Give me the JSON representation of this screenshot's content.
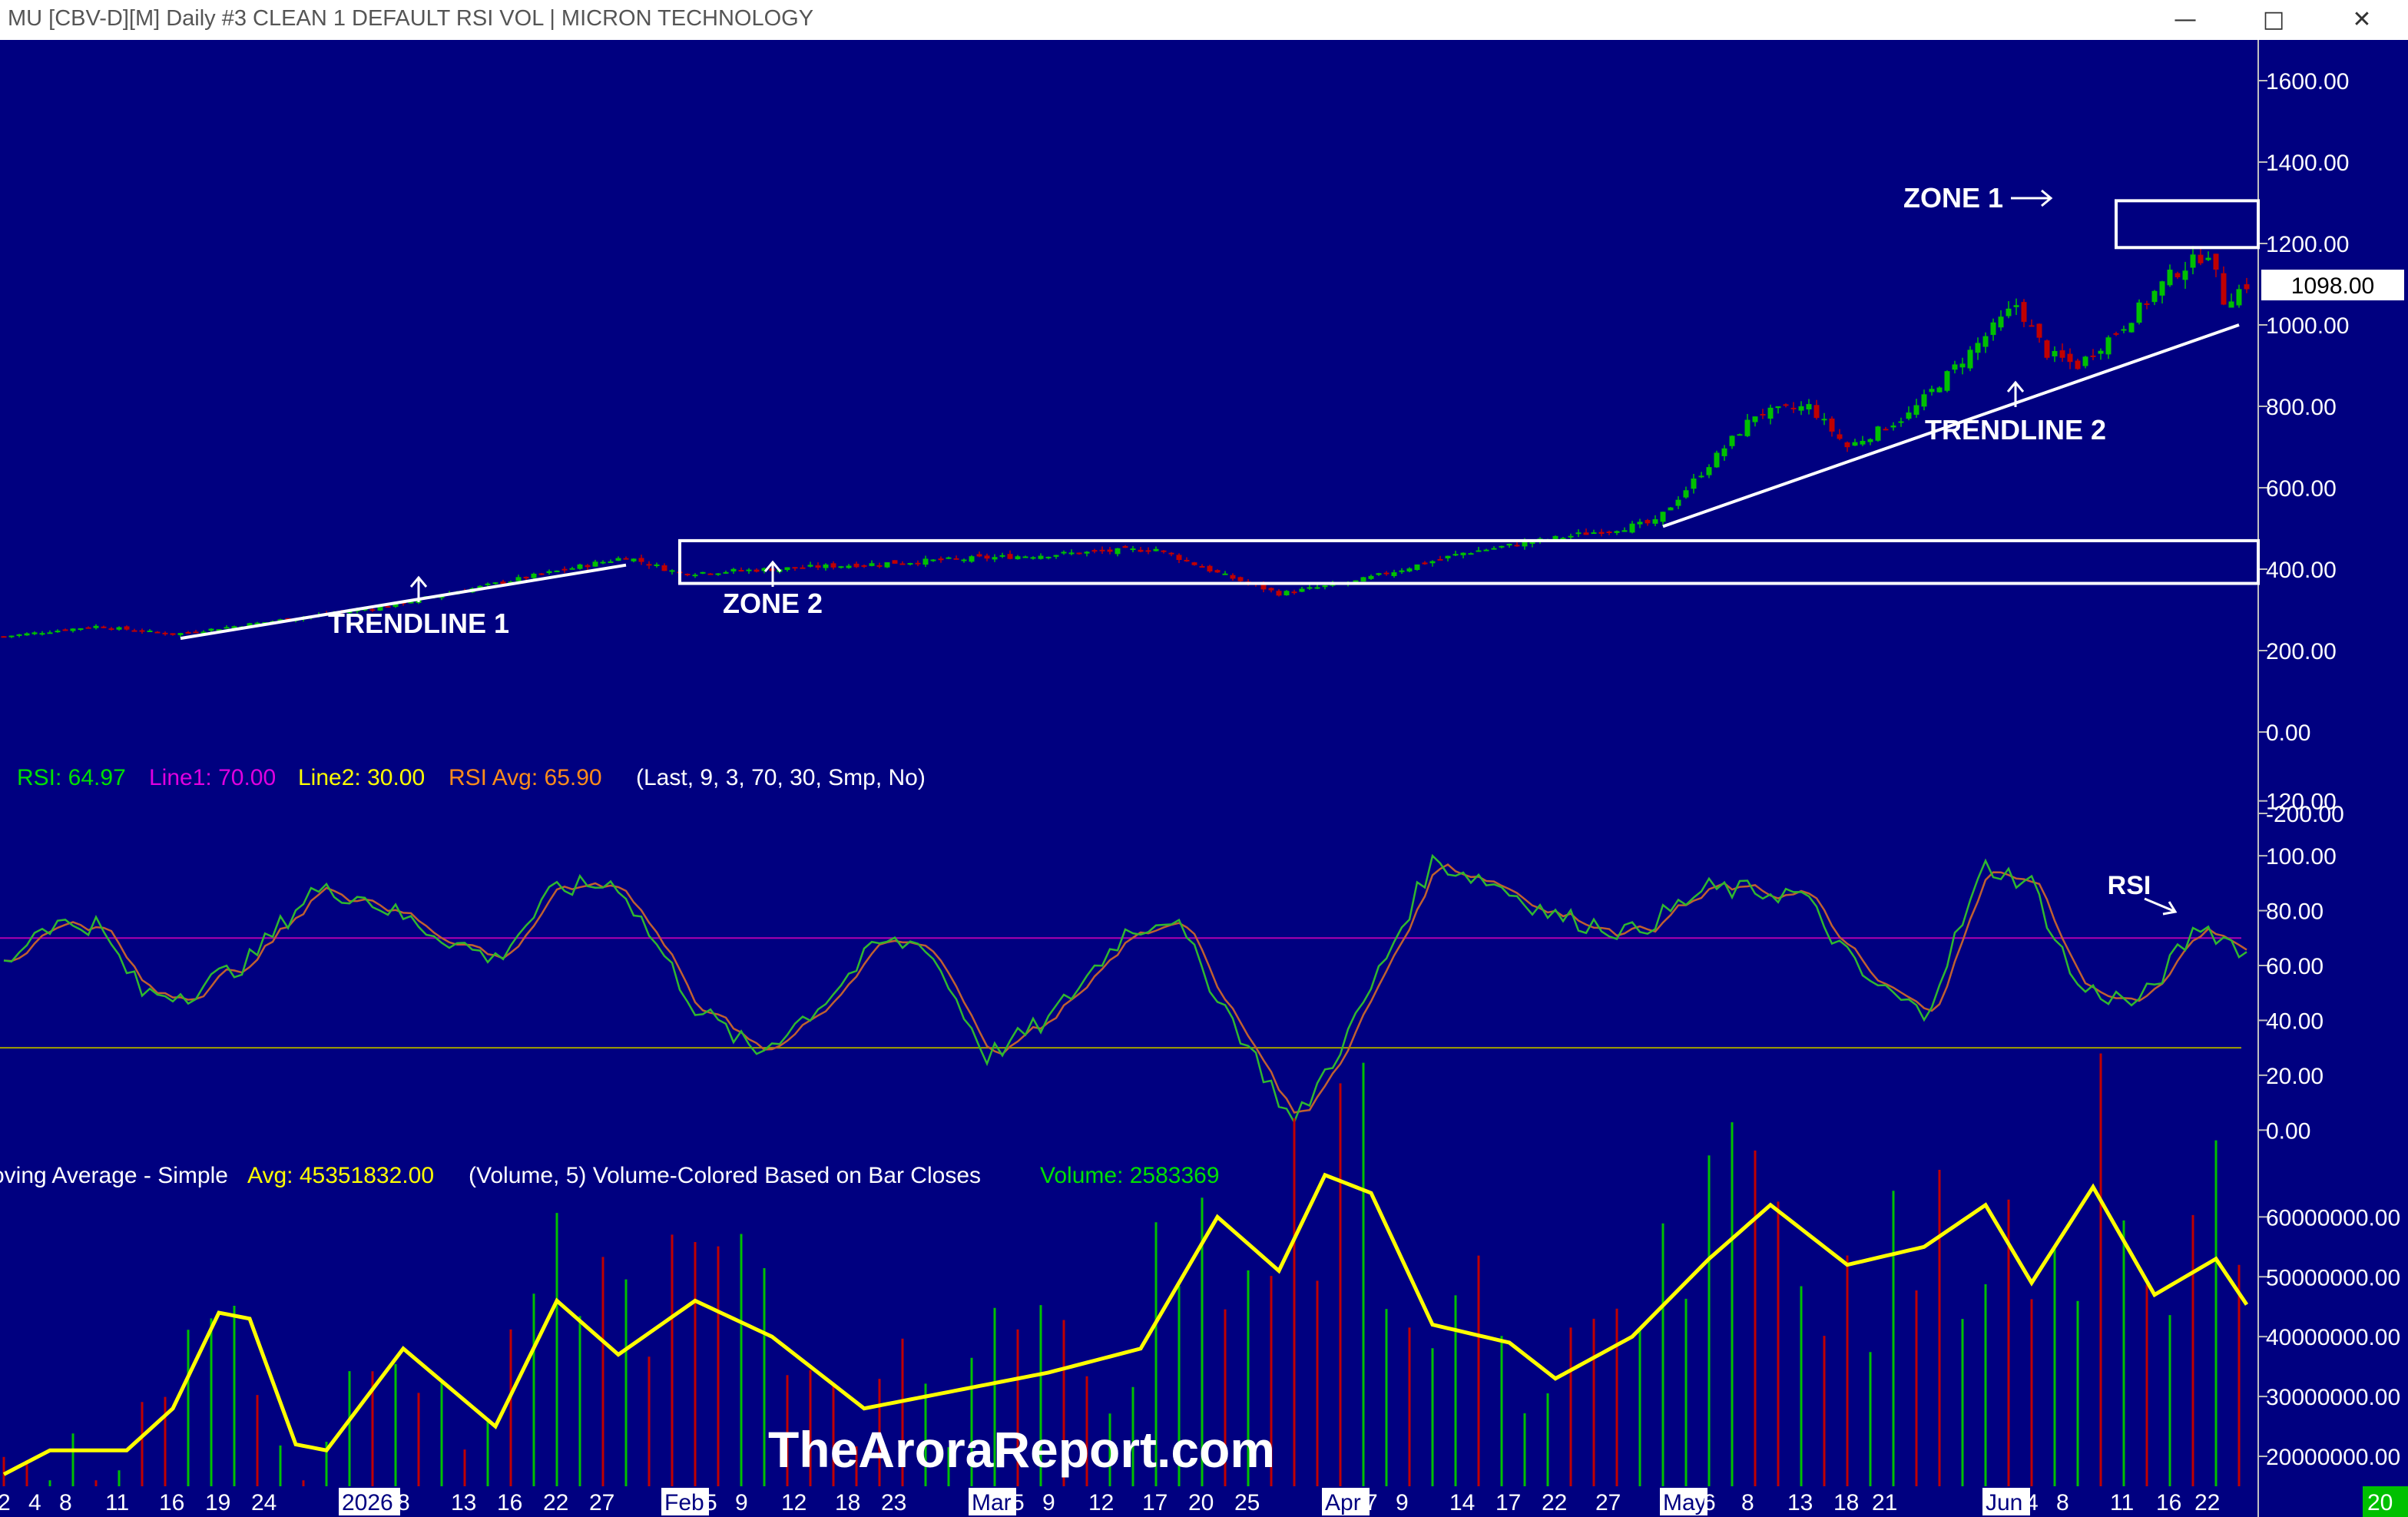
{
  "window": {
    "title": "MU [CBV-D][M]  Daily #3 CLEAN  1 DEFAULT RSI VOL | MICRON TECHNOLOGY",
    "minimize_icon": "minimize-icon",
    "maximize_icon": "maximize-icon",
    "close_icon": "close-icon"
  },
  "colors": {
    "background": "#000080",
    "up": "#00c000",
    "down": "#c00000",
    "rsi": "#2fb82f",
    "rsi_avg": "#c06030",
    "line1": "#b000b0",
    "line2": "#a0a000",
    "volume_ma": "#ffff00",
    "annotation": "#ffffff"
  },
  "chart_data": [
    {
      "type": "candlestick",
      "name": "MU price",
      "ylim": [
        -300,
        1700
      ],
      "y_ticks": [
        "1600.00",
        "1400.00",
        "1200.00",
        "1000.00",
        "800.00",
        "600.00",
        "400.00",
        "200.00",
        "0.00",
        "-200.00"
      ],
      "last_price_label": "1098.00",
      "annotations": {
        "trendline1": "TRENDLINE 1",
        "zone2": "ZONE 2",
        "zone1": "ZONE 1",
        "trendline2": "TRENDLINE 2"
      },
      "trendline1": {
        "from": {
          "bar": 23,
          "price": 230
        },
        "to": {
          "bar": 81,
          "price": 410
        }
      },
      "trendline2": {
        "from": {
          "bar": 216,
          "price": 505
        },
        "to": {
          "bar": 291,
          "price": 1000
        }
      },
      "zone1": {
        "from_bar": 275,
        "price_low": 1190,
        "price_high": 1305
      },
      "zone2": {
        "from_bar": 88,
        "price_low": 365,
        "price_high": 470
      },
      "anchors": [
        {
          "bar": 0,
          "close": 235
        },
        {
          "bar": 12,
          "close": 260
        },
        {
          "bar": 22,
          "close": 240
        },
        {
          "bar": 50,
          "close": 310
        },
        {
          "bar": 81,
          "close": 430
        },
        {
          "bar": 88,
          "close": 390
        },
        {
          "bar": 100,
          "close": 400
        },
        {
          "bar": 120,
          "close": 420
        },
        {
          "bar": 150,
          "close": 450
        },
        {
          "bar": 158,
          "close": 390
        },
        {
          "bar": 166,
          "close": 340
        },
        {
          "bar": 176,
          "close": 370
        },
        {
          "bar": 190,
          "close": 440
        },
        {
          "bar": 200,
          "close": 470
        },
        {
          "bar": 215,
          "close": 515
        },
        {
          "bar": 228,
          "close": 780
        },
        {
          "bar": 235,
          "close": 800
        },
        {
          "bar": 240,
          "close": 700
        },
        {
          "bar": 248,
          "close": 780
        },
        {
          "bar": 262,
          "close": 1050
        },
        {
          "bar": 266,
          "close": 930
        },
        {
          "bar": 270,
          "close": 900
        },
        {
          "bar": 276,
          "close": 1000
        },
        {
          "bar": 282,
          "close": 1120
        },
        {
          "bar": 287,
          "close": 1180
        },
        {
          "bar": 289,
          "close": 1060
        },
        {
          "bar": 292,
          "close": 1098
        }
      ]
    },
    {
      "type": "line",
      "name": "RSI",
      "legend": {
        "rsi": "RSI: 64.97",
        "line1": "Line1: 70.00",
        "line2": "Line2: 30.00",
        "rsi_avg": "RSI Avg: 65.90",
        "params": "(Last, 9, 3, 70, 30, Smp, No)"
      },
      "annotation": "RSI",
      "ylim": [
        -10,
        130
      ],
      "y_ticks": [
        "120.00",
        "100.00",
        "80.00",
        "60.00",
        "40.00",
        "20.00",
        "0.00"
      ],
      "line1": 70,
      "line2": 30,
      "rsi_anchors": [
        {
          "bar": 0,
          "v": 60
        },
        {
          "bar": 5,
          "v": 75
        },
        {
          "bar": 12,
          "v": 75
        },
        {
          "bar": 18,
          "v": 50
        },
        {
          "bar": 24,
          "v": 50
        },
        {
          "bar": 32,
          "v": 62
        },
        {
          "bar": 40,
          "v": 87
        },
        {
          "bar": 46,
          "v": 86
        },
        {
          "bar": 56,
          "v": 72
        },
        {
          "bar": 64,
          "v": 62
        },
        {
          "bar": 72,
          "v": 88
        },
        {
          "bar": 80,
          "v": 90
        },
        {
          "bar": 90,
          "v": 45
        },
        {
          "bar": 98,
          "v": 28
        },
        {
          "bar": 106,
          "v": 45
        },
        {
          "bar": 114,
          "v": 68
        },
        {
          "bar": 120,
          "v": 68
        },
        {
          "bar": 128,
          "v": 27
        },
        {
          "bar": 136,
          "v": 40
        },
        {
          "bar": 146,
          "v": 72
        },
        {
          "bar": 152,
          "v": 78
        },
        {
          "bar": 160,
          "v": 40
        },
        {
          "bar": 168,
          "v": 2
        },
        {
          "bar": 176,
          "v": 40
        },
        {
          "bar": 186,
          "v": 98
        },
        {
          "bar": 194,
          "v": 90
        },
        {
          "bar": 202,
          "v": 78
        },
        {
          "bar": 212,
          "v": 72
        },
        {
          "bar": 222,
          "v": 88
        },
        {
          "bar": 234,
          "v": 86
        },
        {
          "bar": 242,
          "v": 56
        },
        {
          "bar": 250,
          "v": 42
        },
        {
          "bar": 258,
          "v": 96
        },
        {
          "bar": 264,
          "v": 90
        },
        {
          "bar": 270,
          "v": 52
        },
        {
          "bar": 278,
          "v": 46
        },
        {
          "bar": 286,
          "v": 75
        },
        {
          "bar": 292,
          "v": 64.97
        }
      ]
    },
    {
      "type": "bar",
      "name": "Volume",
      "legend": {
        "ma_name": "Moving Average - Simple",
        "avg": "Avg: 45351832.00",
        "params": "(Volume, 5)  Volume-Colored Based on Bar Closes",
        "volume": "Volume: 2583369"
      },
      "watermark": "TheAroraReport.com",
      "ylim": [
        15000000,
        68000000
      ],
      "y_ticks": [
        "60000000.00",
        "50000000.00",
        "40000000.00",
        "30000000.00",
        "20000000.00"
      ],
      "ma_anchors": [
        {
          "bar": 0,
          "v": 17000000
        },
        {
          "bar": 6,
          "v": 21000000
        },
        {
          "bar": 16,
          "v": 21000000
        },
        {
          "bar": 22,
          "v": 28000000
        },
        {
          "bar": 28,
          "v": 44000000
        },
        {
          "bar": 32,
          "v": 43000000
        },
        {
          "bar": 38,
          "v": 22000000
        },
        {
          "bar": 42,
          "v": 21000000
        },
        {
          "bar": 52,
          "v": 38000000
        },
        {
          "bar": 64,
          "v": 25000000
        },
        {
          "bar": 72,
          "v": 46000000
        },
        {
          "bar": 80,
          "v": 37000000
        },
        {
          "bar": 90,
          "v": 46000000
        },
        {
          "bar": 100,
          "v": 40000000
        },
        {
          "bar": 112,
          "v": 28000000
        },
        {
          "bar": 124,
          "v": 31000000
        },
        {
          "bar": 136,
          "v": 34000000
        },
        {
          "bar": 148,
          "v": 38000000
        },
        {
          "bar": 158,
          "v": 60000000
        },
        {
          "bar": 166,
          "v": 51000000
        },
        {
          "bar": 172,
          "v": 67000000
        },
        {
          "bar": 178,
          "v": 64000000
        },
        {
          "bar": 186,
          "v": 42000000
        },
        {
          "bar": 196,
          "v": 39000000
        },
        {
          "bar": 202,
          "v": 33000000
        },
        {
          "bar": 212,
          "v": 40000000
        },
        {
          "bar": 222,
          "v": 53000000
        },
        {
          "bar": 230,
          "v": 62000000
        },
        {
          "bar": 240,
          "v": 52000000
        },
        {
          "bar": 250,
          "v": 55000000
        },
        {
          "bar": 258,
          "v": 62000000
        },
        {
          "bar": 264,
          "v": 49000000
        },
        {
          "bar": 272,
          "v": 65000000
        },
        {
          "bar": 280,
          "v": 47000000
        },
        {
          "bar": 288,
          "v": 53000000
        },
        {
          "bar": 292,
          "v": 45351832
        }
      ]
    }
  ],
  "x_axis": {
    "labels": [
      {
        "bar": 0,
        "text": "2"
      },
      {
        "bar": 4,
        "text": "4"
      },
      {
        "bar": 8,
        "text": "8"
      },
      {
        "bar": 14,
        "text": "11"
      },
      {
        "bar": 21,
        "text": "16"
      },
      {
        "bar": 27,
        "text": "19"
      },
      {
        "bar": 33,
        "text": "24"
      },
      {
        "bar": 44,
        "text": "2026",
        "highlight": true
      },
      {
        "bar": 52,
        "text": "8"
      },
      {
        "bar": 59,
        "text": "13"
      },
      {
        "bar": 65,
        "text": "16"
      },
      {
        "bar": 71,
        "text": "22"
      },
      {
        "bar": 77,
        "text": "27"
      },
      {
        "bar": 86,
        "text": "Feb",
        "highlight": true
      },
      {
        "bar": 92,
        "text": "5"
      },
      {
        "bar": 96,
        "text": "9"
      },
      {
        "bar": 102,
        "text": "12"
      },
      {
        "bar": 109,
        "text": "18"
      },
      {
        "bar": 115,
        "text": "23"
      },
      {
        "bar": 126,
        "text": "Mar",
        "highlight": true
      },
      {
        "bar": 132,
        "text": "5"
      },
      {
        "bar": 136,
        "text": "9"
      },
      {
        "bar": 142,
        "text": "12"
      },
      {
        "bar": 149,
        "text": "17"
      },
      {
        "bar": 155,
        "text": "20"
      },
      {
        "bar": 161,
        "text": "25"
      },
      {
        "bar": 172,
        "text": "Apr",
        "highlight": true
      },
      {
        "bar": 178,
        "text": "7"
      },
      {
        "bar": 182,
        "text": "9"
      },
      {
        "bar": 189,
        "text": "14"
      },
      {
        "bar": 195,
        "text": "17"
      },
      {
        "bar": 201,
        "text": "22"
      },
      {
        "bar": 208,
        "text": "27"
      },
      {
        "bar": 216,
        "text": "May",
        "highlight": true
      },
      {
        "bar": 222,
        "text": "6"
      },
      {
        "bar": 227,
        "text": "8"
      },
      {
        "bar": 233,
        "text": "13"
      },
      {
        "bar": 239,
        "text": "18"
      },
      {
        "bar": 244,
        "text": "21"
      },
      {
        "bar": 258,
        "text": "Jun",
        "highlight": true
      },
      {
        "bar": 264,
        "text": "4"
      },
      {
        "bar": 268,
        "text": "8"
      },
      {
        "bar": 275,
        "text": "11"
      },
      {
        "bar": 281,
        "text": "16"
      },
      {
        "bar": 286,
        "text": "22"
      }
    ],
    "corner_label": "20"
  }
}
